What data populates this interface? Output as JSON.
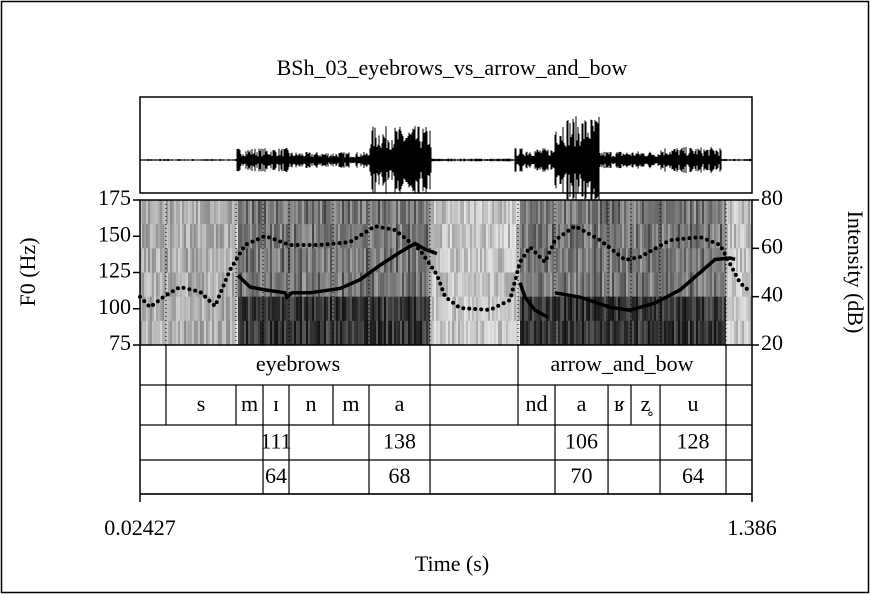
{
  "chart_data": {
    "type": "praat",
    "title": "BSh_03_eyebrows_vs_arrow_and_bow",
    "xlabel": "Time (s)",
    "ylabel": "F0 (Hz)",
    "y2label": "Intensity (dB)",
    "xlim": [
      0.02427,
      1.386
    ],
    "xticks": [
      0.02427,
      1.386
    ],
    "ylim": [
      75,
      175
    ],
    "yticks": [
      75,
      100,
      125,
      150,
      175
    ],
    "y2lim": [
      20,
      80
    ],
    "y2ticks": [
      20,
      40,
      60,
      80
    ],
    "series": [
      {
        "color": "#000000",
        "style": "solid",
        "x": [
          0.2423,
          0.2691,
          0.3024,
          0.3469,
          0.3514,
          0.3625,
          0.4026,
          0.4693,
          0.5138,
          0.5583,
          0.6028,
          0.6362,
          0.6585,
          0.6852,
          null,
          0.8698,
          0.881,
          0.9032,
          0.9322,
          null,
          0.9478,
          1.0034,
          1.0702,
          1.1147,
          1.1703,
          1.226,
          1.2705,
          1.3038,
          1.3372,
          1.3483
        ],
        "values": [
          123,
          115,
          113,
          111,
          108,
          111,
          111,
          114,
          120,
          130,
          139,
          145,
          141,
          138,
          null,
          118,
          108,
          99,
          94,
          null,
          111,
          108,
          101,
          99,
          104,
          113,
          125,
          134,
          135,
          134
        ]
      },
      {
        "color": "#000000",
        "style": "dotted",
        "axis": "y2",
        "x": [
          0.0243,
          0.0465,
          0.0799,
          0.1133,
          0.1578,
          0.1912,
          0.2245,
          0.2579,
          0.3024,
          0.3581,
          0.4248,
          0.4916,
          0.5472,
          0.5917,
          0.6473,
          0.6852,
          0.703,
          0.7364,
          0.8031,
          0.8476,
          0.8698,
          0.8921,
          0.9255,
          0.9478,
          0.9923,
          1.0479,
          1.1036,
          1.137,
          1.2037,
          1.2705,
          1.3149,
          1.3594,
          1.3772
        ],
        "values": [
          39.9,
          35.7,
          40.3,
          44,
          42,
          36.1,
          51,
          61.4,
          65.1,
          61.4,
          61.4,
          62.6,
          69.2,
          67.6,
          59.3,
          49,
          40,
          35.3,
          34.5,
          38.6,
          54.3,
          60.5,
          54.3,
          63.4,
          69.2,
          63.4,
          55.2,
          56.4,
          63.4,
          64.7,
          61.4,
          45.7,
          42.8
        ]
      }
    ],
    "tiers": [
      {
        "boundaries": [
          0.0821,
          0.6696,
          0.8654,
          1.3282
        ],
        "labels": [
          null,
          "eyebrows",
          null,
          "arrow_and_bow",
          null
        ]
      },
      {
        "boundaries": [
          0.0821,
          0.2379,
          0.298,
          0.3558,
          0.4537,
          0.5338,
          0.6696,
          0.8654,
          0.9477,
          1.0657,
          1.1168,
          1.1814,
          1.3282
        ],
        "labels": [
          null,
          "s",
          "m",
          "ɪ",
          "n",
          "m",
          "a",
          null,
          "nd",
          "a",
          "ʁ",
          "z̥",
          "u",
          null
        ]
      },
      {
        "boundaries": [
          0.298,
          0.3558,
          0.5338,
          0.6696,
          0.9477,
          1.0657,
          1.1814,
          1.3282
        ],
        "labels": [
          null,
          "111",
          null,
          "138",
          null,
          "106",
          null,
          "128",
          null
        ]
      },
      {
        "boundaries": [
          0.298,
          0.3558,
          0.5338,
          0.6696,
          0.9477,
          1.0657,
          1.1814,
          1.3282
        ],
        "labels": [
          null,
          "64",
          null,
          "68",
          null,
          "70",
          null,
          "64",
          null
        ]
      }
    ]
  }
}
